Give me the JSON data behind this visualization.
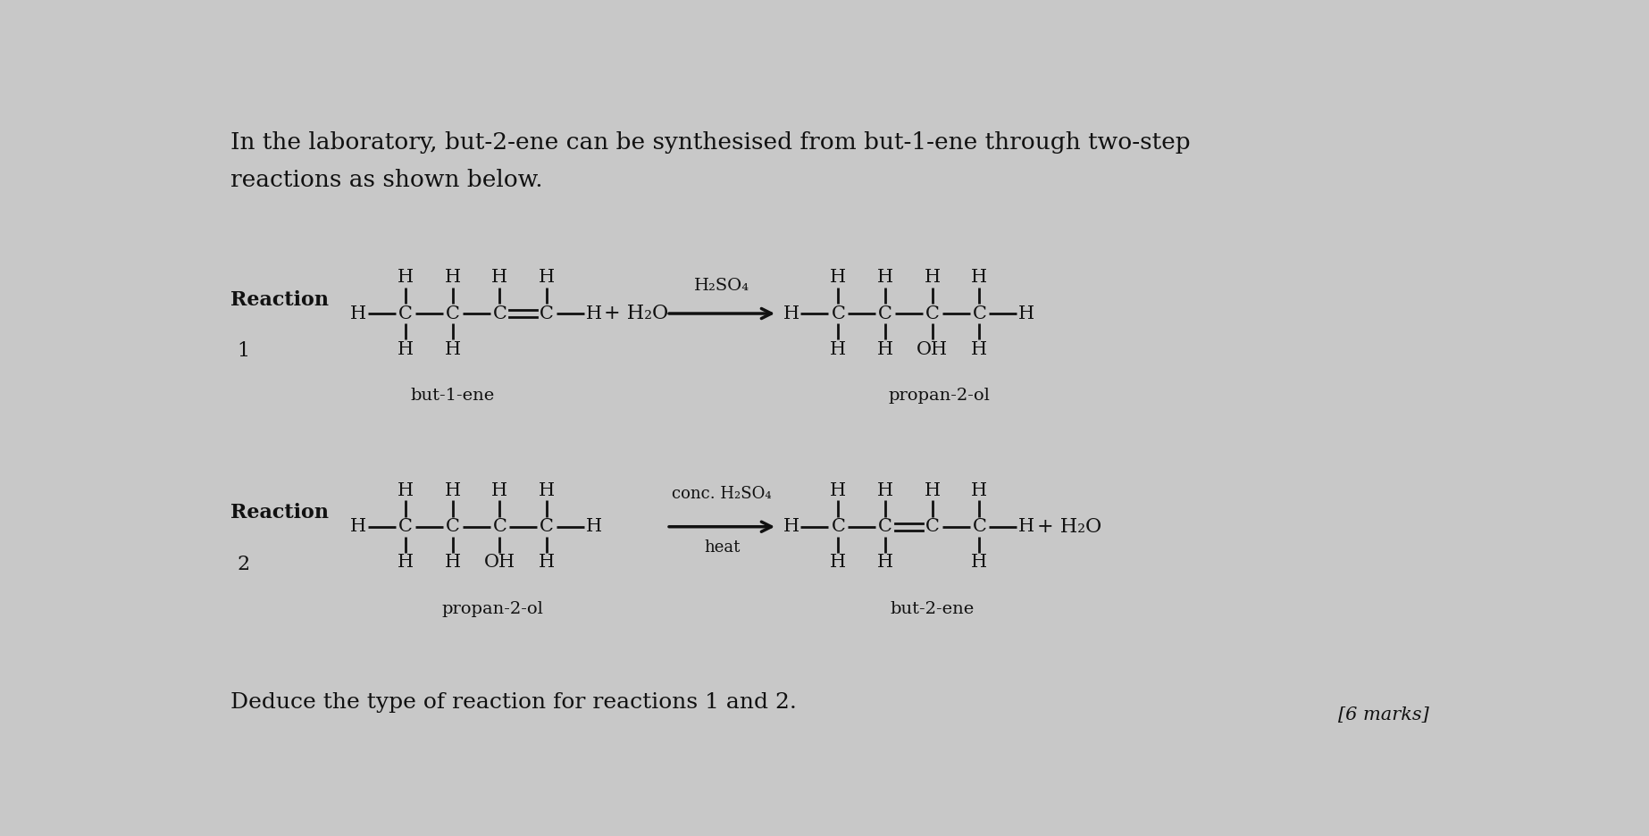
{
  "bg_color": "#c8c8c8",
  "text_color": "#111111",
  "title_line1": "In the laboratory, but-2-ene can be synthesised from but-1-ene through two-step",
  "title_line2": "reactions as shown below.",
  "reaction1_label": "Reaction",
  "reaction1_num": "1",
  "reaction2_label": "Reaction",
  "reaction2_num": "2",
  "reaction1_catalyst": "H₂SO₄",
  "reaction2_catalyst": "conc. H₂SO₄",
  "reaction2_heat": "heat",
  "but1ene_label": "but-1-ene",
  "but2ene_label": "but-2-ene",
  "propan2ol_label1": "propan-2-ol",
  "propan2ol_label2": "propan-2-ol",
  "plus_h2o": "+ H₂O",
  "deduce_text": "Deduce the type of reaction for reactions 1 and 2.",
  "marks_text": "[6 marks]",
  "title_fontsize": 19,
  "label_fontsize": 16,
  "mol_fontsize": 15,
  "small_fontsize": 14
}
